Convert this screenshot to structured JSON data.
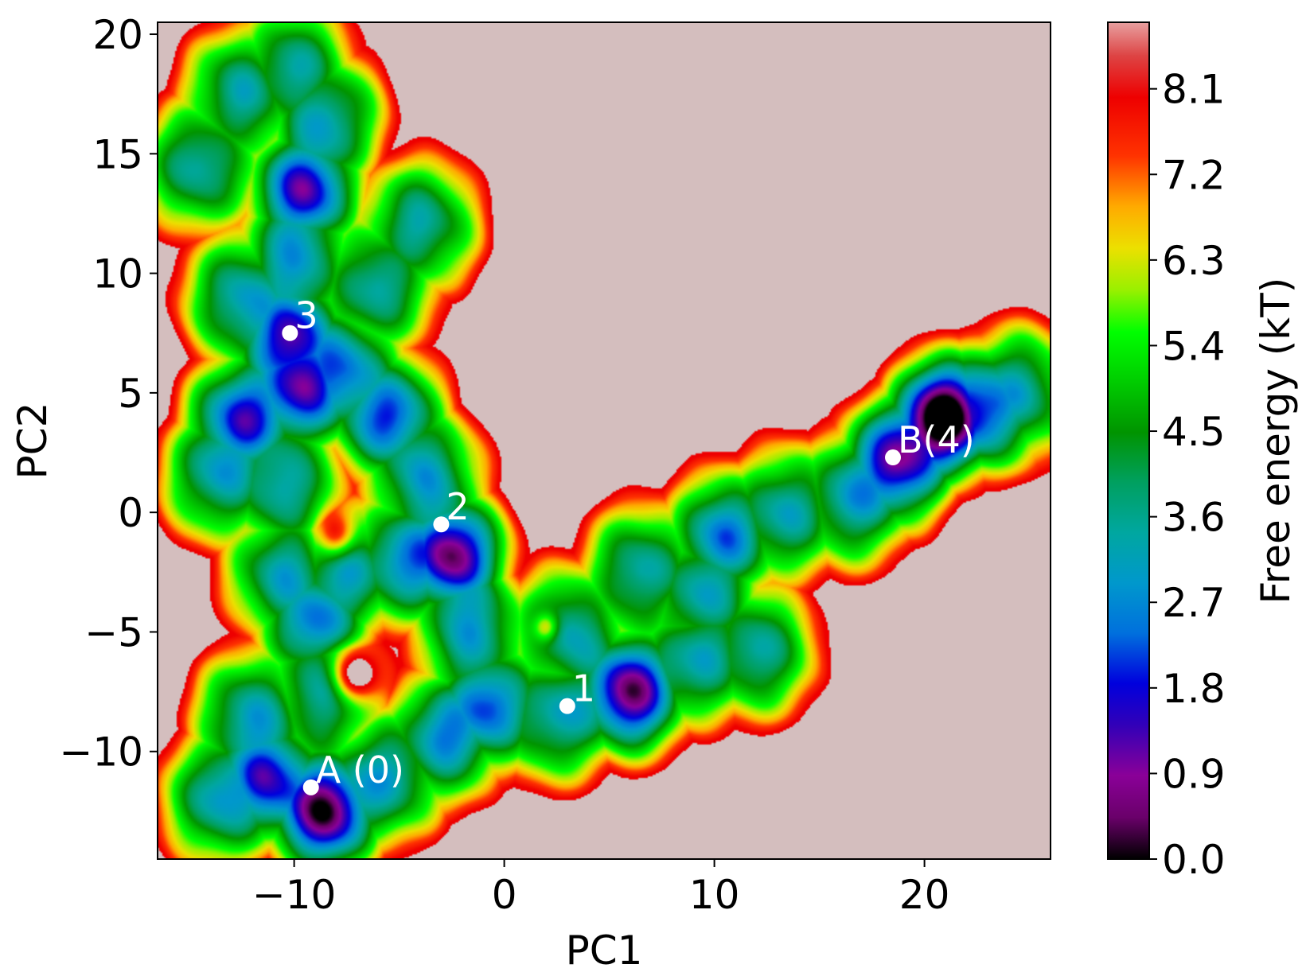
{
  "chart_data": {
    "type": "heatmap",
    "title": "",
    "xlabel": "PC1",
    "ylabel": "PC2",
    "xlim": [
      -16.5,
      26
    ],
    "ylim": [
      -14.5,
      20.5
    ],
    "x_ticks": [
      -10,
      0,
      10,
      20
    ],
    "x_tick_labels": [
      "−10",
      "0",
      "10",
      "20"
    ],
    "y_ticks": [
      -10,
      -5,
      0,
      5,
      10,
      15,
      20
    ],
    "y_tick_labels": [
      "−10",
      "−5",
      "0",
      "5",
      "10",
      "15",
      "20"
    ],
    "colorbar": {
      "label": "Free energy (kT)",
      "range": [
        0,
        8.8
      ],
      "ticks": [
        0.0,
        0.9,
        1.8,
        2.7,
        3.6,
        4.5,
        5.4,
        6.3,
        7.2,
        8.1
      ],
      "tick_labels": [
        "0.0",
        "0.9",
        "1.8",
        "2.7",
        "3.6",
        "4.5",
        "5.4",
        "6.3",
        "7.2",
        "8.1"
      ],
      "colormap": "nipy_spectral"
    },
    "background_color": "#d4bebe",
    "grid": false,
    "landscape_basins": [
      {
        "x": -9.5,
        "y": 13.5,
        "depth": 2.2
      },
      {
        "x": -10.2,
        "y": 7.5,
        "depth": 1.8
      },
      {
        "x": -9.5,
        "y": 5.2,
        "depth": 1.6
      },
      {
        "x": -12.5,
        "y": 3.8,
        "depth": 1.7
      },
      {
        "x": -5.5,
        "y": 4.0,
        "depth": 1.4
      },
      {
        "x": -2.5,
        "y": -1.8,
        "depth": 3.0
      },
      {
        "x": -9.0,
        "y": -4.5,
        "depth": 1.0
      },
      {
        "x": -8.5,
        "y": -12.5,
        "depth": 3.2
      },
      {
        "x": -11.5,
        "y": -11.0,
        "depth": 1.6
      },
      {
        "x": -1.5,
        "y": -8.5,
        "depth": 1.6
      },
      {
        "x": 6.0,
        "y": -7.5,
        "depth": 3.0
      },
      {
        "x": 10.5,
        "y": -1.0,
        "depth": 1.0
      },
      {
        "x": 21.0,
        "y": 4.0,
        "depth": 4.2
      },
      {
        "x": 18.5,
        "y": 2.0,
        "depth": 2.0
      }
    ],
    "markers": [
      {
        "label": "3",
        "x": -10.2,
        "y": 7.5
      },
      {
        "label": "2",
        "x": -3.0,
        "y": -0.5
      },
      {
        "label": "B(4)",
        "x": 18.5,
        "y": 2.3
      },
      {
        "label": "1",
        "x": 3.0,
        "y": -8.1
      },
      {
        "label": "A (0)",
        "x": -9.2,
        "y": -11.5
      }
    ]
  }
}
